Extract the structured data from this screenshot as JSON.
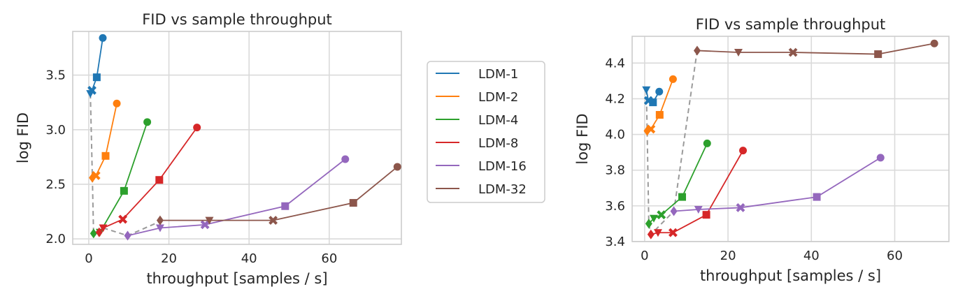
{
  "chart_data": [
    {
      "type": "scatter",
      "title": "FID vs sample throughput",
      "xlabel": "throughput [samples / s]",
      "ylabel": "log FID",
      "xlim": [
        -4,
        78
      ],
      "ylim": [
        1.95,
        3.9
      ],
      "xticks": [
        0,
        20,
        40,
        60
      ],
      "yticks": [
        2.0,
        2.5,
        3.0,
        3.5
      ],
      "ytick_labels": [
        "2.0",
        "2.5",
        "3.0",
        "3.5"
      ],
      "grid": true,
      "pareto_front": {
        "style": "dashed",
        "color": "#9a9a9a",
        "x": [
          0.4,
          0.9,
          1.2,
          3.6,
          9.7,
          17.8
        ],
        "y": [
          3.33,
          2.56,
          2.05,
          2.1,
          2.03,
          2.16
        ]
      },
      "series": [
        {
          "name": "LDM-1",
          "color": "#1f77b4",
          "x": [
            0.4,
            0.8,
            2.0,
            3.5
          ],
          "y": [
            3.33,
            3.36,
            3.48,
            3.84
          ],
          "markers": [
            "triangle_down",
            "x",
            "square",
            "circle"
          ]
        },
        {
          "name": "LDM-2",
          "color": "#ff7f0e",
          "x": [
            0.9,
            1.8,
            4.2,
            7.0
          ],
          "y": [
            2.56,
            2.58,
            2.76,
            3.24
          ],
          "markers": [
            "diamond",
            "x",
            "square",
            "circle"
          ]
        },
        {
          "name": "LDM-4",
          "color": "#2ca02c",
          "x": [
            1.2,
            2.8,
            8.8,
            14.6
          ],
          "y": [
            2.05,
            2.06,
            2.44,
            3.07
          ],
          "markers": [
            "diamond",
            "triangle_down",
            "square",
            "circle"
          ]
        },
        {
          "name": "LDM-8",
          "color": "#d62728",
          "x": [
            2.6,
            3.6,
            8.5,
            17.6,
            27.0
          ],
          "y": [
            2.06,
            2.1,
            2.18,
            2.54,
            3.02
          ],
          "markers": [
            "diamond",
            "triangle_down",
            "x",
            "square",
            "circle"
          ]
        },
        {
          "name": "LDM-16",
          "color": "#9467bd",
          "x": [
            9.7,
            17.8,
            29.0,
            49.0,
            64.0
          ],
          "y": [
            2.03,
            2.1,
            2.13,
            2.3,
            2.73
          ],
          "markers": [
            "diamond",
            "triangle_down",
            "x",
            "square",
            "circle"
          ]
        },
        {
          "name": "LDM-32",
          "color": "#8c564b",
          "x": [
            17.8,
            30.1,
            46.0,
            66.0,
            77.0
          ],
          "y": [
            2.17,
            2.17,
            2.17,
            2.33,
            2.66
          ],
          "markers": [
            "diamond",
            "triangle_down",
            "x",
            "square",
            "circle"
          ]
        }
      ]
    },
    {
      "type": "scatter",
      "title": "FID vs sample throughput",
      "xlabel": "throughput [samples / s]",
      "ylabel": "log FID",
      "xlim": [
        -3,
        73
      ],
      "ylim": [
        3.4,
        4.55
      ],
      "xticks": [
        0,
        20,
        40,
        60
      ],
      "yticks": [
        3.4,
        3.6,
        3.8,
        4.0,
        4.2,
        4.4
      ],
      "ytick_labels": [
        "3.4",
        "3.6",
        "3.8",
        "4.0",
        "4.2",
        "4.4"
      ],
      "grid": true,
      "pareto_front": {
        "style": "dashed",
        "color": "#9a9a9a",
        "x": [
          0.4,
          0.6,
          1.0,
          1.5,
          7.0,
          12.6
        ],
        "y": [
          4.25,
          4.02,
          3.5,
          3.44,
          3.57,
          4.47
        ]
      },
      "series": [
        {
          "name": "LDM-1",
          "color": "#1f77b4",
          "x": [
            0.4,
            0.9,
            2.0,
            3.5
          ],
          "y": [
            4.25,
            4.19,
            4.18,
            4.24
          ],
          "markers": [
            "triangle_down",
            "x",
            "square",
            "circle"
          ]
        },
        {
          "name": "LDM-2",
          "color": "#ff7f0e",
          "x": [
            0.6,
            1.5,
            3.6,
            6.8
          ],
          "y": [
            4.02,
            4.03,
            4.11,
            4.31
          ],
          "markers": [
            "diamond",
            "x",
            "square",
            "circle"
          ]
        },
        {
          "name": "LDM-4",
          "color": "#2ca02c",
          "x": [
            1.0,
            2.2,
            4.0,
            9.0,
            15.0
          ],
          "y": [
            3.5,
            3.53,
            3.55,
            3.65,
            3.95
          ],
          "markers": [
            "diamond",
            "triangle_down",
            "x",
            "square",
            "circle"
          ]
        },
        {
          "name": "LDM-8",
          "color": "#d62728",
          "x": [
            1.5,
            3.2,
            6.8,
            14.8,
            23.6
          ],
          "y": [
            3.44,
            3.45,
            3.45,
            3.55,
            3.91
          ],
          "markers": [
            "diamond",
            "triangle_down",
            "x",
            "square",
            "circle"
          ]
        },
        {
          "name": "LDM-16",
          "color": "#9467bd",
          "x": [
            7.0,
            12.9,
            23.0,
            41.3,
            56.6
          ],
          "y": [
            3.57,
            3.58,
            3.59,
            3.65,
            3.87
          ],
          "markers": [
            "diamond",
            "triangle_down",
            "x",
            "square",
            "circle"
          ]
        },
        {
          "name": "LDM-32",
          "color": "#8c564b",
          "x": [
            12.6,
            22.5,
            35.6,
            56.0,
            69.5
          ],
          "y": [
            4.47,
            4.46,
            4.46,
            4.45,
            4.51
          ],
          "markers": [
            "diamond",
            "triangle_down",
            "x",
            "square",
            "circle"
          ]
        }
      ]
    }
  ],
  "legend": {
    "placement": "between-charts",
    "entries": [
      {
        "label": "LDM-1",
        "color": "#1f77b4"
      },
      {
        "label": "LDM-2",
        "color": "#ff7f0e"
      },
      {
        "label": "LDM-4",
        "color": "#2ca02c"
      },
      {
        "label": "LDM-8",
        "color": "#d62728"
      },
      {
        "label": "LDM-16",
        "color": "#9467bd"
      },
      {
        "label": "LDM-32",
        "color": "#8c564b"
      }
    ]
  }
}
